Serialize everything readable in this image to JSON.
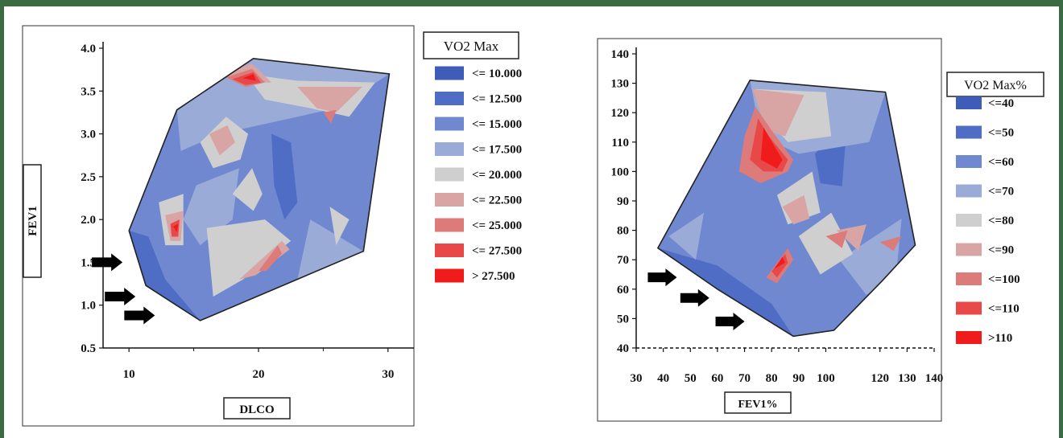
{
  "chart_data": [
    {
      "type": "heatmap",
      "title": "",
      "xlabel": "DLCO",
      "ylabel": "FEV1",
      "xlim": [
        8,
        32
      ],
      "ylim": [
        0.5,
        4.0
      ],
      "x_ticks": [
        "10",
        "20",
        "30"
      ],
      "y_ticks": [
        "0.5",
        "1.0",
        "1.5",
        "2.0",
        "2.5",
        "3.0",
        "3.5",
        "4.0"
      ],
      "legend_title": "VO2 Max",
      "legend_placement": "right",
      "legend": [
        {
          "label": "<= 10.000",
          "color": "#3f5cb8"
        },
        {
          "label": "<= 12.500",
          "color": "#4f6dc4"
        },
        {
          "label": "<= 15.000",
          "color": "#6f88d0"
        },
        {
          "label": "<= 17.500",
          "color": "#9aabd8"
        },
        {
          "label": "<= 20.000",
          "color": "#cfcfcf"
        },
        {
          "label": "<= 22.500",
          "color": "#d8a4a4"
        },
        {
          "label": "<= 25.000",
          "color": "#dd7a7a"
        },
        {
          "label": "<= 27.500",
          "color": "#e94848"
        },
        {
          "label": "> 27.500",
          "color": "#f01c1c"
        }
      ],
      "hull": [
        [
          10,
          1.87
        ],
        [
          13.7,
          3.28
        ],
        [
          19.6,
          3.88
        ],
        [
          30.1,
          3.7
        ],
        [
          28.1,
          1.63
        ],
        [
          15.5,
          0.82
        ],
        [
          11.3,
          1.23
        ]
      ],
      "regions": [
        {
          "level": 1,
          "points": [
            [
              10,
              1.87
            ],
            [
              11.3,
              1.23
            ],
            [
              15.5,
              0.82
            ],
            [
              12.8,
              1.3
            ],
            [
              11.5,
              1.8
            ]
          ]
        },
        {
          "level": 1,
          "points": [
            [
              21,
              3.0
            ],
            [
              22.5,
              2.9
            ],
            [
              23,
              2.2
            ],
            [
              22,
              2.0
            ],
            [
              21.2,
              2.4
            ]
          ]
        },
        {
          "level": 3,
          "points": [
            [
              13.7,
              3.28
            ],
            [
              19.6,
              3.88
            ],
            [
              30.1,
              3.7
            ],
            [
              26,
              3.3
            ],
            [
              17,
              3.0
            ],
            [
              14,
              2.8
            ]
          ]
        },
        {
          "level": 3,
          "points": [
            [
              15.2,
              2.4
            ],
            [
              18.5,
              2.6
            ],
            [
              18,
              2.0
            ],
            [
              15.5,
              1.7
            ],
            [
              14.2,
              2.0
            ]
          ]
        },
        {
          "level": 3,
          "points": [
            [
              24,
              2.0
            ],
            [
              28.1,
              1.63
            ],
            [
              26,
              1.3
            ],
            [
              23,
              1.3
            ]
          ]
        },
        {
          "level": 4,
          "points": [
            [
              19,
              3.7
            ],
            [
              23,
              3.62
            ],
            [
              29,
              3.6
            ],
            [
              27,
              3.2
            ],
            [
              24,
              3.3
            ],
            [
              20.5,
              3.4
            ]
          ]
        },
        {
          "level": 4,
          "points": [
            [
              15.5,
              2.9
            ],
            [
              17.5,
              3.2
            ],
            [
              19.2,
              3.0
            ],
            [
              18.6,
              2.7
            ],
            [
              16.5,
              2.6
            ]
          ]
        },
        {
          "level": 4,
          "points": [
            [
              18,
              2.3
            ],
            [
              19.5,
              2.6
            ],
            [
              20.3,
              2.3
            ],
            [
              19.6,
              2.1
            ]
          ]
        },
        {
          "level": 4,
          "points": [
            [
              16,
              1.9
            ],
            [
              20.5,
              2.0
            ],
            [
              22.5,
              1.75
            ],
            [
              18.8,
              1.3
            ],
            [
              16.5,
              1.1
            ]
          ]
        },
        {
          "level": 4,
          "points": [
            [
              25.5,
              2.15
            ],
            [
              27,
              2.0
            ],
            [
              26,
              1.7
            ]
          ]
        },
        {
          "level": 4,
          "points": [
            [
              12.3,
              2.2
            ],
            [
              14.2,
              2.3
            ],
            [
              14.2,
              1.7
            ],
            [
              12.8,
              1.7
            ]
          ]
        },
        {
          "level": 5,
          "points": [
            [
              16.2,
              3.0
            ],
            [
              17.6,
              3.1
            ],
            [
              18.2,
              2.9
            ],
            [
              17,
              2.75
            ]
          ]
        },
        {
          "level": 5,
          "points": [
            [
              23,
              3.55
            ],
            [
              28,
              3.55
            ],
            [
              26,
              3.25
            ],
            [
              24.5,
              3.3
            ]
          ]
        },
        {
          "level": 5,
          "points": [
            [
              18.5,
              1.3
            ],
            [
              21.8,
              1.75
            ],
            [
              22.4,
              1.65
            ],
            [
              19.8,
              1.35
            ]
          ]
        },
        {
          "level": 5,
          "points": [
            [
              12.8,
              2.05
            ],
            [
              14.2,
              2.1
            ],
            [
              14,
              1.75
            ],
            [
              13.2,
              1.75
            ]
          ]
        },
        {
          "level": 5,
          "points": [
            [
              17,
              3.7
            ],
            [
              19.5,
              3.82
            ],
            [
              21,
              3.6
            ],
            [
              19,
              3.6
            ]
          ]
        },
        {
          "level": 6,
          "points": [
            [
              17.5,
              3.66
            ],
            [
              19.5,
              3.76
            ],
            [
              20.5,
              3.6
            ],
            [
              19,
              3.55
            ]
          ]
        },
        {
          "level": 6,
          "points": [
            [
              25,
              3.25
            ],
            [
              26,
              3.28
            ],
            [
              25.6,
              3.12
            ]
          ]
        },
        {
          "level": 6,
          "points": [
            [
              20,
              1.4
            ],
            [
              21.5,
              1.7
            ],
            [
              21.8,
              1.6
            ],
            [
              20.6,
              1.4
            ]
          ]
        },
        {
          "level": 7,
          "points": [
            [
              18,
              3.64
            ],
            [
              19.6,
              3.72
            ],
            [
              20.2,
              3.6
            ],
            [
              19,
              3.57
            ]
          ]
        },
        {
          "level": 7,
          "points": [
            [
              13.2,
              1.95
            ],
            [
              13.9,
              2.0
            ],
            [
              13.8,
              1.8
            ],
            [
              13.3,
              1.8
            ]
          ]
        },
        {
          "level": 8,
          "points": [
            [
              18.8,
              3.65
            ],
            [
              19.6,
              3.7
            ],
            [
              19.8,
              3.62
            ]
          ]
        },
        {
          "level": 8,
          "points": [
            [
              13.4,
              1.92
            ],
            [
              13.8,
              1.95
            ],
            [
              13.7,
              1.85
            ]
          ]
        }
      ],
      "arrows": [
        [
          9.5,
          1.5
        ],
        [
          10.5,
          1.1
        ],
        [
          12,
          0.88
        ]
      ]
    },
    {
      "type": "heatmap",
      "title": "",
      "xlabel": "FEV1%",
      "ylabel": "",
      "xlim": [
        30,
        140
      ],
      "ylim": [
        40,
        140
      ],
      "x_ticks": [
        "30",
        "40",
        "50",
        "60",
        "70",
        "80",
        "90",
        "100",
        "120",
        "130",
        "140"
      ],
      "y_ticks": [
        "40",
        "50",
        "60",
        "70",
        "80",
        "90",
        "100",
        "110",
        "120",
        "130",
        "140"
      ],
      "legend_title": "VO2 Max%",
      "legend_placement": "right",
      "legend": [
        {
          "label": "<=40",
          "color": "#3f5cb8"
        },
        {
          "label": "<=50",
          "color": "#4f6dc4"
        },
        {
          "label": "<=60",
          "color": "#6f88d0"
        },
        {
          "label": "<=70",
          "color": "#9aabd8"
        },
        {
          "label": "<=80",
          "color": "#cfcfcf"
        },
        {
          "label": "<=90",
          "color": "#d8a4a4"
        },
        {
          "label": "<=100",
          "color": "#dd7a7a"
        },
        {
          "label": "<=110",
          "color": "#e94848"
        },
        {
          "label": ">110",
          "color": "#f01c1c"
        }
      ],
      "hull": [
        [
          38,
          74
        ],
        [
          72,
          131
        ],
        [
          122,
          127
        ],
        [
          133,
          75
        ],
        [
          121,
          63
        ],
        [
          103,
          46
        ],
        [
          88,
          44
        ],
        [
          60,
          60
        ]
      ],
      "regions": [
        {
          "level": 1,
          "points": [
            [
              38,
              74
            ],
            [
              60,
              60
            ],
            [
              88,
              44
            ],
            [
              80,
              55
            ],
            [
              60,
              68
            ]
          ]
        },
        {
          "level": 1,
          "points": [
            [
              96,
              106
            ],
            [
              108,
              118
            ],
            [
              106,
              95
            ],
            [
              98,
              96
            ]
          ]
        },
        {
          "level": 3,
          "points": [
            [
              72,
              131
            ],
            [
              122,
              127
            ],
            [
              116,
              110
            ],
            [
              90,
              106
            ],
            [
              76,
              112
            ]
          ]
        },
        {
          "level": 3,
          "points": [
            [
              42,
              78
            ],
            [
              55,
              86
            ],
            [
              52,
              70
            ]
          ]
        },
        {
          "level": 3,
          "points": [
            [
              105,
              70
            ],
            [
              128,
              84
            ],
            [
              126,
              65
            ],
            [
              115,
              58
            ]
          ]
        },
        {
          "level": 4,
          "points": [
            [
              74,
              128
            ],
            [
              100,
              127
            ],
            [
              102,
              112
            ],
            [
              86,
              110
            ],
            [
              78,
              118
            ]
          ]
        },
        {
          "level": 4,
          "points": [
            [
              82,
              92
            ],
            [
              95,
              100
            ],
            [
              98,
              86
            ],
            [
              86,
              82
            ]
          ]
        },
        {
          "level": 4,
          "points": [
            [
              90,
              78
            ],
            [
              102,
              86
            ],
            [
              110,
              72
            ],
            [
              98,
              65
            ]
          ]
        },
        {
          "level": 5,
          "points": [
            [
              73,
              128
            ],
            [
              92,
              126
            ],
            [
              85,
              112
            ],
            [
              78,
              114
            ]
          ]
        },
        {
          "level": 5,
          "points": [
            [
              84,
              88
            ],
            [
              92,
              92
            ],
            [
              94,
              84
            ],
            [
              88,
              82
            ]
          ]
        },
        {
          "level": 5,
          "points": [
            [
              104,
              80
            ],
            [
              115,
              82
            ],
            [
              112,
              73
            ]
          ]
        },
        {
          "level": 6,
          "points": [
            [
              74,
              122
            ],
            [
              80,
              114
            ],
            [
              88,
              104
            ],
            [
              86,
              100
            ],
            [
              76,
              96
            ],
            [
              68,
              100
            ],
            [
              70,
              112
            ]
          ]
        },
        {
          "level": 6,
          "points": [
            [
              100,
              78
            ],
            [
              108,
              80
            ],
            [
              106,
              74
            ]
          ]
        },
        {
          "level": 6,
          "points": [
            [
              120,
              76
            ],
            [
              128,
              78
            ],
            [
              125,
              73
            ]
          ]
        },
        {
          "level": 6,
          "points": [
            [
              78,
              64
            ],
            [
              86,
              74
            ],
            [
              88,
              70
            ],
            [
              82,
              62
            ]
          ]
        },
        {
          "level": 7,
          "points": [
            [
              75,
              118
            ],
            [
              79,
              112
            ],
            [
              86,
              104
            ],
            [
              84,
              100
            ],
            [
              77,
              100
            ],
            [
              72,
              104
            ]
          ]
        },
        {
          "level": 7,
          "points": [
            [
              80,
              66
            ],
            [
              85,
              72
            ],
            [
              86,
              69
            ],
            [
              82,
              64
            ]
          ]
        },
        {
          "level": 8,
          "points": [
            [
              77,
              115
            ],
            [
              84,
              104
            ],
            [
              82,
              101
            ],
            [
              76,
              104
            ]
          ]
        },
        {
          "level": 8,
          "points": [
            [
              81,
              67
            ],
            [
              84,
              71
            ],
            [
              85,
              69
            ]
          ]
        }
      ],
      "arrows": [
        [
          45,
          64
        ],
        [
          57,
          57
        ],
        [
          70,
          49
        ]
      ]
    }
  ]
}
